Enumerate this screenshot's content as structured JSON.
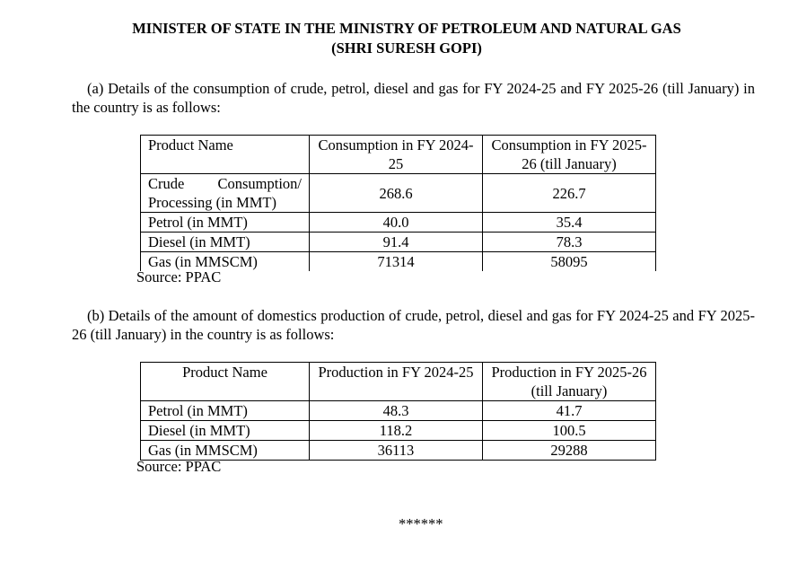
{
  "heading": {
    "line1": "MINISTER OF STATE IN THE MINISTRY OF PETROLEUM AND NATURAL GAS",
    "line2": "(SHRI SURESH GOPI)"
  },
  "part_a": {
    "text": "(a)  Details of the consumption of crude, petrol, diesel and gas for FY 2024-25 and FY 2025-26 (till January) in the country is as follows:",
    "headers": [
      "Product Name",
      "Consumption  in FY 2024-25",
      "Consumption in FY 2025-26 (till January)"
    ],
    "rows": [
      [
        "Crude    Consumption/ Processing (in MMT)",
        "268.6",
        "226.7"
      ],
      [
        "Petrol (in MMT)",
        "40.0",
        "35.4"
      ],
      [
        "Diesel (in MMT)",
        "91.4",
        "78.3"
      ],
      [
        "Gas (in MMSCM)",
        "71314",
        "58095"
      ]
    ],
    "source": "Source: PPAC"
  },
  "part_b": {
    "text": "(b)  Details of the amount of domestics production of crude, petrol, diesel and gas for FY 2024-25 and FY 2025-26 (till January) in the country is as follows:",
    "headers": [
      "Product Name",
      "Production  in FY 2024-25",
      "Production in FY 2025-26 (till January)"
    ],
    "rows": [
      [
        "Petrol (in MMT)",
        "48.3",
        "41.7"
      ],
      [
        "Diesel (in MMT)",
        "118.2",
        "100.5"
      ],
      [
        "Gas (in MMSCM)",
        "36113",
        "29288"
      ]
    ],
    "source": "Source: PPAC"
  },
  "end_marker": "******"
}
